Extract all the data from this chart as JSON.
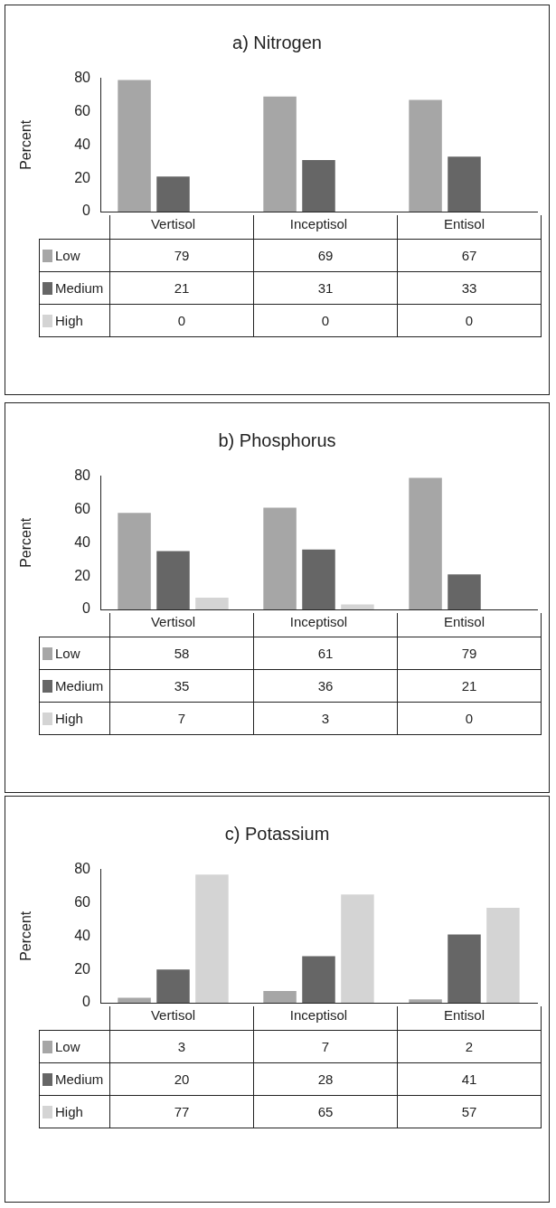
{
  "chart_data": [
    {
      "type": "bar",
      "title": "a) Nitrogen",
      "ylabel": "Percent",
      "categories": [
        "Vertisol",
        "Inceptisol",
        "Entisol"
      ],
      "ylim": [
        0,
        80
      ],
      "yticks": [
        0,
        20,
        40,
        60,
        80
      ],
      "legend": "bottom",
      "data_labels": true,
      "series": [
        {
          "name": "Low",
          "color": "#a6a6a6",
          "values": [
            79,
            69,
            67
          ]
        },
        {
          "name": "Medium",
          "color": "#666666",
          "values": [
            21,
            31,
            33
          ]
        },
        {
          "name": "High",
          "color": "#d4d4d4",
          "values": [
            0,
            0,
            0
          ]
        }
      ]
    },
    {
      "type": "bar",
      "title": "b) Phosphorus",
      "ylabel": "Percent",
      "categories": [
        "Vertisol",
        "Inceptisol",
        "Entisol"
      ],
      "ylim": [
        0,
        80
      ],
      "yticks": [
        0,
        20,
        40,
        60,
        80
      ],
      "legend": "bottom",
      "data_labels": true,
      "series": [
        {
          "name": "Low",
          "color": "#a6a6a6",
          "values": [
            58,
            61,
            79
          ]
        },
        {
          "name": "Medium",
          "color": "#666666",
          "values": [
            35,
            36,
            21
          ]
        },
        {
          "name": "High",
          "color": "#d4d4d4",
          "values": [
            7,
            3,
            0
          ]
        }
      ]
    },
    {
      "type": "bar",
      "title": "c) Potassium",
      "ylabel": "Percent",
      "categories": [
        "Vertisol",
        "Inceptisol",
        "Entisol"
      ],
      "ylim": [
        0,
        80
      ],
      "yticks": [
        0,
        20,
        40,
        60,
        80
      ],
      "legend": "bottom",
      "data_labels": true,
      "series": [
        {
          "name": "Low",
          "color": "#a6a6a6",
          "values": [
            3,
            7,
            2
          ]
        },
        {
          "name": "Medium",
          "color": "#666666",
          "values": [
            20,
            28,
            41
          ]
        },
        {
          "name": "High",
          "color": "#d4d4d4",
          "values": [
            77,
            65,
            57
          ]
        }
      ]
    }
  ]
}
